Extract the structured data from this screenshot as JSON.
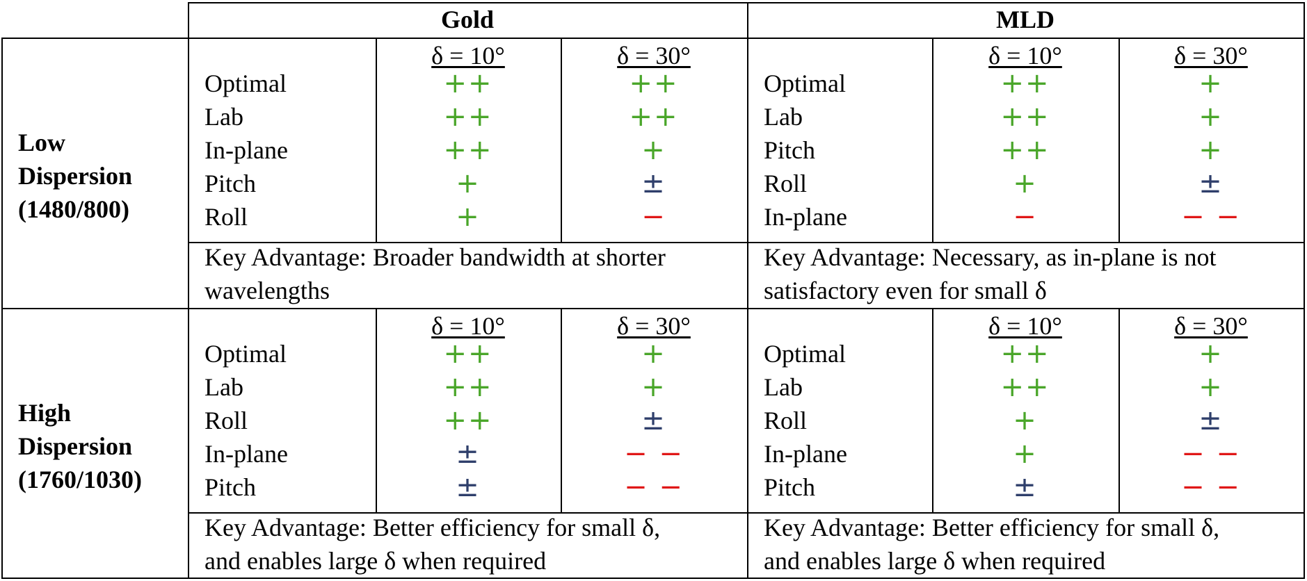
{
  "colors": {
    "green": "#4aa62a",
    "blue": "#2f3f6b",
    "red": "#e01818"
  },
  "symbol_colors": {
    "++": "green",
    "+": "green",
    "±": "blue",
    "−": "red",
    "− −": "red"
  },
  "header": {
    "gold": "Gold",
    "mld": "MLD"
  },
  "blocks": [
    {
      "row_label": [
        "Low",
        "Dispersion",
        "(1480/800)"
      ],
      "gold": {
        "cols": [
          "δ = 10°",
          "δ = 30°"
        ],
        "rows": [
          {
            "label": "Optimal",
            "v": [
              "++",
              "++"
            ]
          },
          {
            "label": "Lab",
            "v": [
              "++",
              "++"
            ]
          },
          {
            "label": "In-plane",
            "v": [
              "++",
              "+"
            ]
          },
          {
            "label": "Pitch",
            "v": [
              "+",
              "±"
            ]
          },
          {
            "label": "Roll",
            "v": [
              "+",
              "−"
            ]
          }
        ],
        "key": [
          "Key Advantage:  Broader bandwidth at shorter",
          "wavelengths"
        ]
      },
      "mld": {
        "cols": [
          "δ = 10°",
          "δ = 30°"
        ],
        "rows": [
          {
            "label": "Optimal",
            "v": [
              "++",
              "+"
            ]
          },
          {
            "label": "Lab",
            "v": [
              "++",
              "+"
            ]
          },
          {
            "label": "Pitch",
            "v": [
              "++",
              "+"
            ]
          },
          {
            "label": "Roll",
            "v": [
              "+",
              "±"
            ]
          },
          {
            "label": "In-plane",
            "v": [
              "−",
              "− −"
            ]
          }
        ],
        "key": [
          "Key Advantage:  Necessary, as in-plane is not",
          "satisfactory even for small δ"
        ]
      }
    },
    {
      "row_label": [
        "High",
        "Dispersion",
        "(1760/1030)"
      ],
      "gold": {
        "cols": [
          "δ = 10°",
          "δ = 30°"
        ],
        "rows": [
          {
            "label": "Optimal",
            "v": [
              "++",
              "+"
            ]
          },
          {
            "label": "Lab",
            "v": [
              "++",
              "+"
            ]
          },
          {
            "label": "Roll",
            "v": [
              "++",
              "±"
            ]
          },
          {
            "label": "In-plane",
            "v": [
              "±",
              "− −"
            ]
          },
          {
            "label": "Pitch",
            "v": [
              "±",
              "− −"
            ]
          }
        ],
        "key": [
          "Key Advantage:  Better efficiency for small δ,",
          "and enables large δ when required"
        ]
      },
      "mld": {
        "cols": [
          "δ = 10°",
          "δ = 30°"
        ],
        "rows": [
          {
            "label": "Optimal",
            "v": [
              "++",
              "+"
            ]
          },
          {
            "label": "Lab",
            "v": [
              "++",
              "+"
            ]
          },
          {
            "label": "Roll",
            "v": [
              "+",
              "±"
            ]
          },
          {
            "label": "In-plane",
            "v": [
              "+",
              "− −"
            ]
          },
          {
            "label": "Pitch",
            "v": [
              "±",
              "− −"
            ]
          }
        ],
        "key": [
          "Key Advantage:  Better efficiency for small δ,",
          "and enables large δ when required"
        ]
      }
    }
  ]
}
